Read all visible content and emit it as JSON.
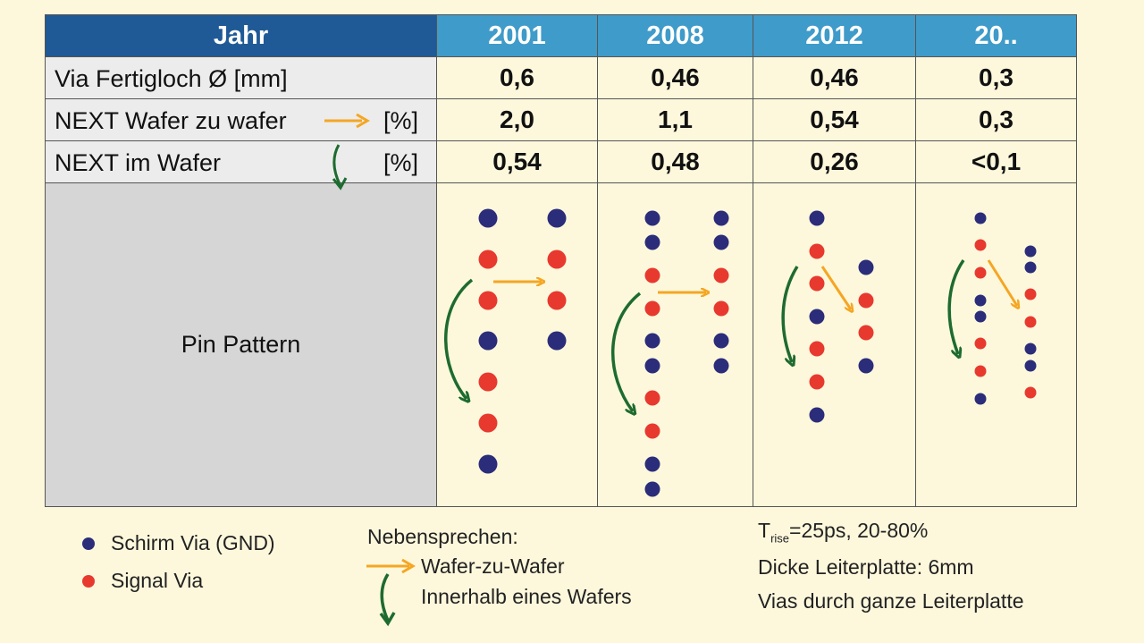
{
  "table": {
    "header": {
      "label": "Jahr",
      "years": [
        "2001",
        "2008",
        "2012",
        "20.."
      ]
    },
    "rows": [
      {
        "label": "Via Fertigloch Ø [mm]",
        "unit": "",
        "values": [
          "0,6",
          "0,46",
          "0,46",
          "0,3"
        ]
      },
      {
        "label": "NEXT Wafer zu wafer",
        "unit": "[%]",
        "values": [
          "2,0",
          "1,1",
          "0,54",
          "0,3"
        ]
      },
      {
        "label": "NEXT im Wafer",
        "unit": "[%]",
        "values": [
          "0,54",
          "0,48",
          "0,26",
          "<0,1"
        ]
      }
    ],
    "pin_row_label": "Pin Pattern"
  },
  "pin_patterns": [
    {
      "year": "2001",
      "col1": [
        "GND",
        "Signal",
        "Signal",
        "GND",
        "Signal",
        "Signal",
        "GND"
      ],
      "col2": [
        "GND",
        "Signal",
        "Signal",
        "GND"
      ]
    },
    {
      "year": "2008",
      "col1": [
        "GND",
        "GND",
        "Signal",
        "Signal",
        "GND",
        "GND",
        "Signal",
        "Signal",
        "GND",
        "GND"
      ],
      "col2": [
        "GND",
        "GND",
        "Signal",
        "Signal",
        "GND",
        "GND"
      ]
    },
    {
      "year": "2012",
      "col1": [
        "GND",
        "Signal",
        "Signal",
        "GND",
        "Signal",
        "Signal",
        "GND"
      ],
      "col2": [
        "GND",
        "Signal",
        "Signal",
        "GND"
      ]
    },
    {
      "year": "20..",
      "col1": [
        "GND",
        "Signal",
        "Signal",
        "GND",
        "GND",
        "Signal",
        "Signal",
        "GND"
      ],
      "col2": [
        "GND",
        "GND",
        "Signal",
        "Signal",
        "GND",
        "GND",
        "Signal"
      ]
    }
  ],
  "legend": {
    "gnd_label": "Schirm Via (GND)",
    "signal_label": "Signal Via",
    "crosstalk_title": "Nebensprechen:",
    "wafer_to_wafer": "Wafer-zu-Wafer",
    "within_wafer": "Innerhalb eines Wafers"
  },
  "notes": {
    "trise_T": "T",
    "trise_sub": "rise",
    "trise_rest": "=25ps, 20-80%",
    "thickness": "Dicke Leiterplatte: 6mm",
    "vias": "Vias durch ganze Leiterplatte"
  },
  "colors": {
    "gnd": "#2b2d7a",
    "signal": "#e8392f",
    "orange_arrow": "#f5a623",
    "green_arrow": "#1e6b2f",
    "header_dark": "#1f5a96",
    "header_light": "#3f9bc9"
  }
}
